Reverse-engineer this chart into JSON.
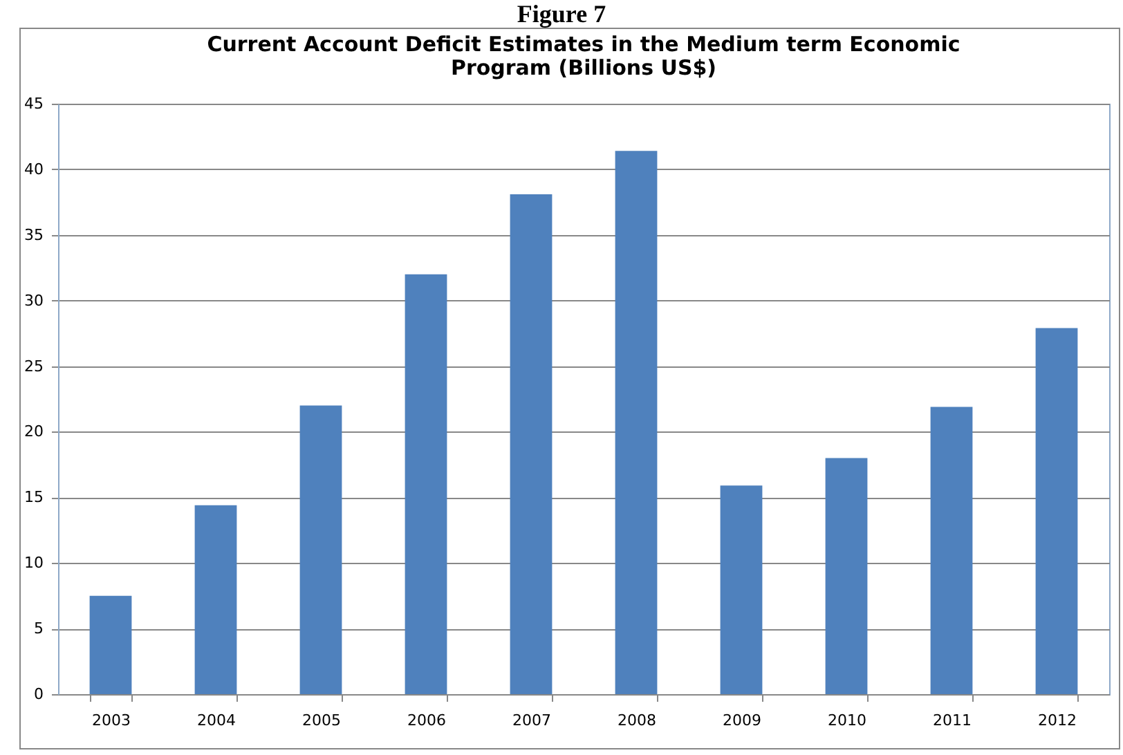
{
  "chart_data": {
    "type": "bar",
    "title": "Current Account Deficit Estimates in the Medium term Economic Program (Billions US$)",
    "annotations": [
      "Figure 7"
    ],
    "categories": [
      "2003",
      "2004",
      "2005",
      "2006",
      "2007",
      "2008",
      "2009",
      "2010",
      "2011",
      "2012"
    ],
    "values": [
      7.5,
      14.4,
      22.0,
      32.0,
      38.1,
      41.4,
      15.9,
      18.0,
      21.9,
      27.9
    ],
    "color": "#4f81bd",
    "ylim": [
      0,
      45
    ],
    "yticks": [
      0,
      5,
      10,
      15,
      20,
      25,
      30,
      35,
      40,
      45
    ],
    "grid": "y"
  }
}
